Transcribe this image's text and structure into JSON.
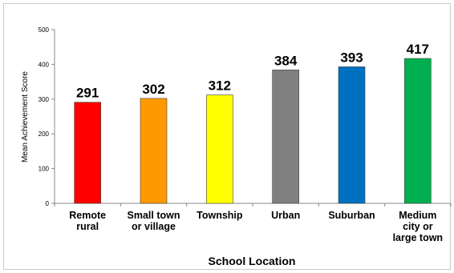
{
  "chart_data": {
    "type": "bar",
    "title": "",
    "xlabel": "School Location",
    "ylabel": "Mean Achievement Score",
    "ylim": [
      0,
      500
    ],
    "yticks": [
      0,
      100,
      200,
      300,
      400,
      500
    ],
    "grid": false,
    "categories": [
      [
        "Remote",
        "rural"
      ],
      [
        "Small town",
        "or village"
      ],
      [
        "Township"
      ],
      [
        "Urban"
      ],
      [
        "Suburban"
      ],
      [
        "Medium",
        "city or",
        "large town"
      ]
    ],
    "values": [
      291,
      302,
      312,
      384,
      393,
      417
    ],
    "colors": [
      "#ff0000",
      "#ff9900",
      "#ffff00",
      "#808080",
      "#0070c0",
      "#00b050"
    ],
    "bar_edge_color": "#404040",
    "axis_color": "#888888"
  }
}
